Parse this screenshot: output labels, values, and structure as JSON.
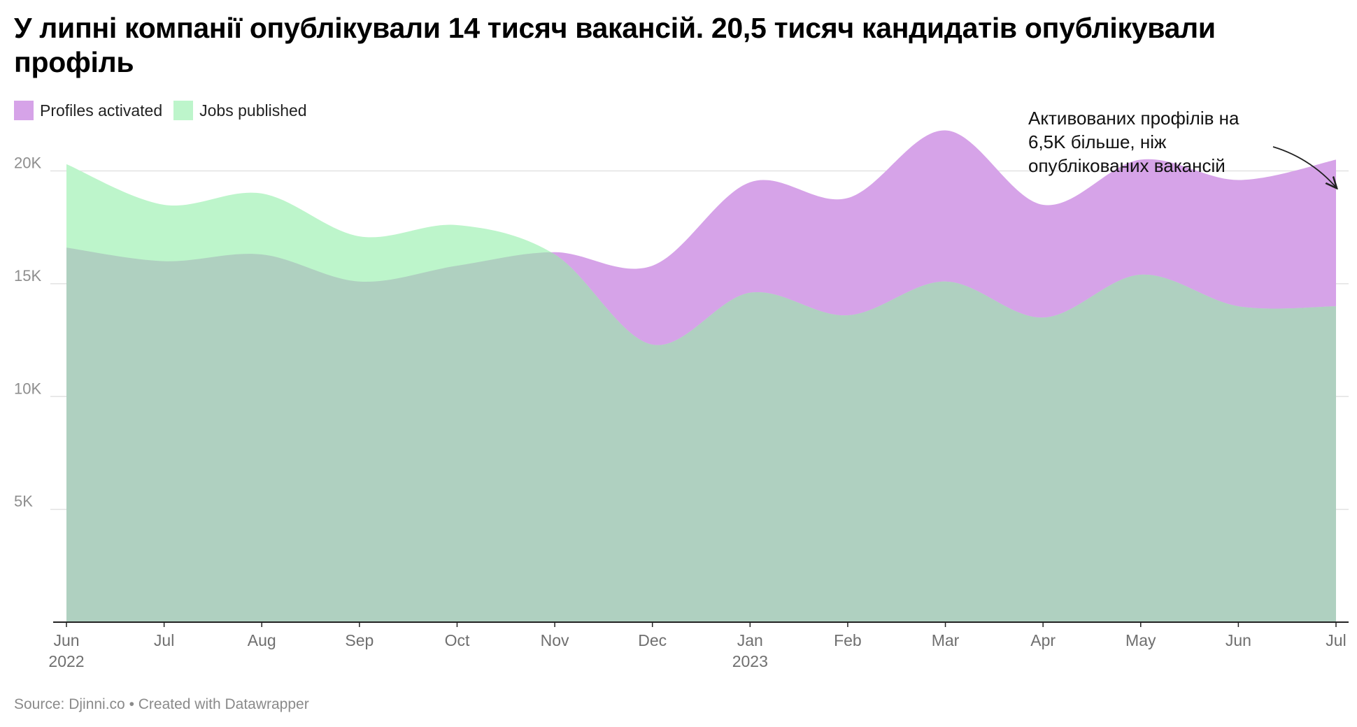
{
  "title": "У липні компанії опублікували 14 тисяч вакансій. 20,5 тисяч кандидатів опублікували профіль",
  "legend": [
    {
      "label": "Profiles activated",
      "color": "#d6a3e8"
    },
    {
      "label": "Jobs published",
      "color": "#bdf5cb"
    }
  ],
  "annotation": {
    "lines": [
      "Активованих профілів на",
      "6,5K більше, ніж",
      "опублікованих вакансій"
    ]
  },
  "footer": {
    "text": "Source: Djinni.co • Created with Datawrapper"
  },
  "chart_data": {
    "type": "area",
    "x_labels": [
      {
        "month": "Jun",
        "year": "2022"
      },
      {
        "month": "Jul",
        "year": ""
      },
      {
        "month": "Aug",
        "year": ""
      },
      {
        "month": "Sep",
        "year": ""
      },
      {
        "month": "Oct",
        "year": ""
      },
      {
        "month": "Nov",
        "year": ""
      },
      {
        "month": "Dec",
        "year": ""
      },
      {
        "month": "Jan",
        "year": "2023"
      },
      {
        "month": "Feb",
        "year": ""
      },
      {
        "month": "Mar",
        "year": ""
      },
      {
        "month": "Apr",
        "year": ""
      },
      {
        "month": "May",
        "year": ""
      },
      {
        "month": "Jun",
        "year": ""
      },
      {
        "month": "Jul",
        "year": ""
      }
    ],
    "series": [
      {
        "name": "Profiles activated",
        "color": "#d6a3e8",
        "values": [
          16600,
          16000,
          16300,
          15100,
          15800,
          16400,
          15800,
          19500,
          18800,
          21800,
          18500,
          20500,
          19600,
          20500
        ]
      },
      {
        "name": "Jobs published",
        "color": "#bdf5cb",
        "values": [
          20300,
          18500,
          19000,
          17100,
          17600,
          16300,
          12300,
          14600,
          13600,
          15100,
          13500,
          15400,
          14000,
          14000
        ]
      }
    ],
    "overlap_color": "#afd0c0",
    "y_ticks": [
      {
        "value": 5000,
        "label": "5K"
      },
      {
        "value": 10000,
        "label": "10K"
      },
      {
        "value": 15000,
        "label": "15K"
      },
      {
        "value": 20000,
        "label": "20K"
      }
    ],
    "ylim": [
      0,
      22000
    ],
    "grid": true,
    "legend_position": "top-left"
  }
}
